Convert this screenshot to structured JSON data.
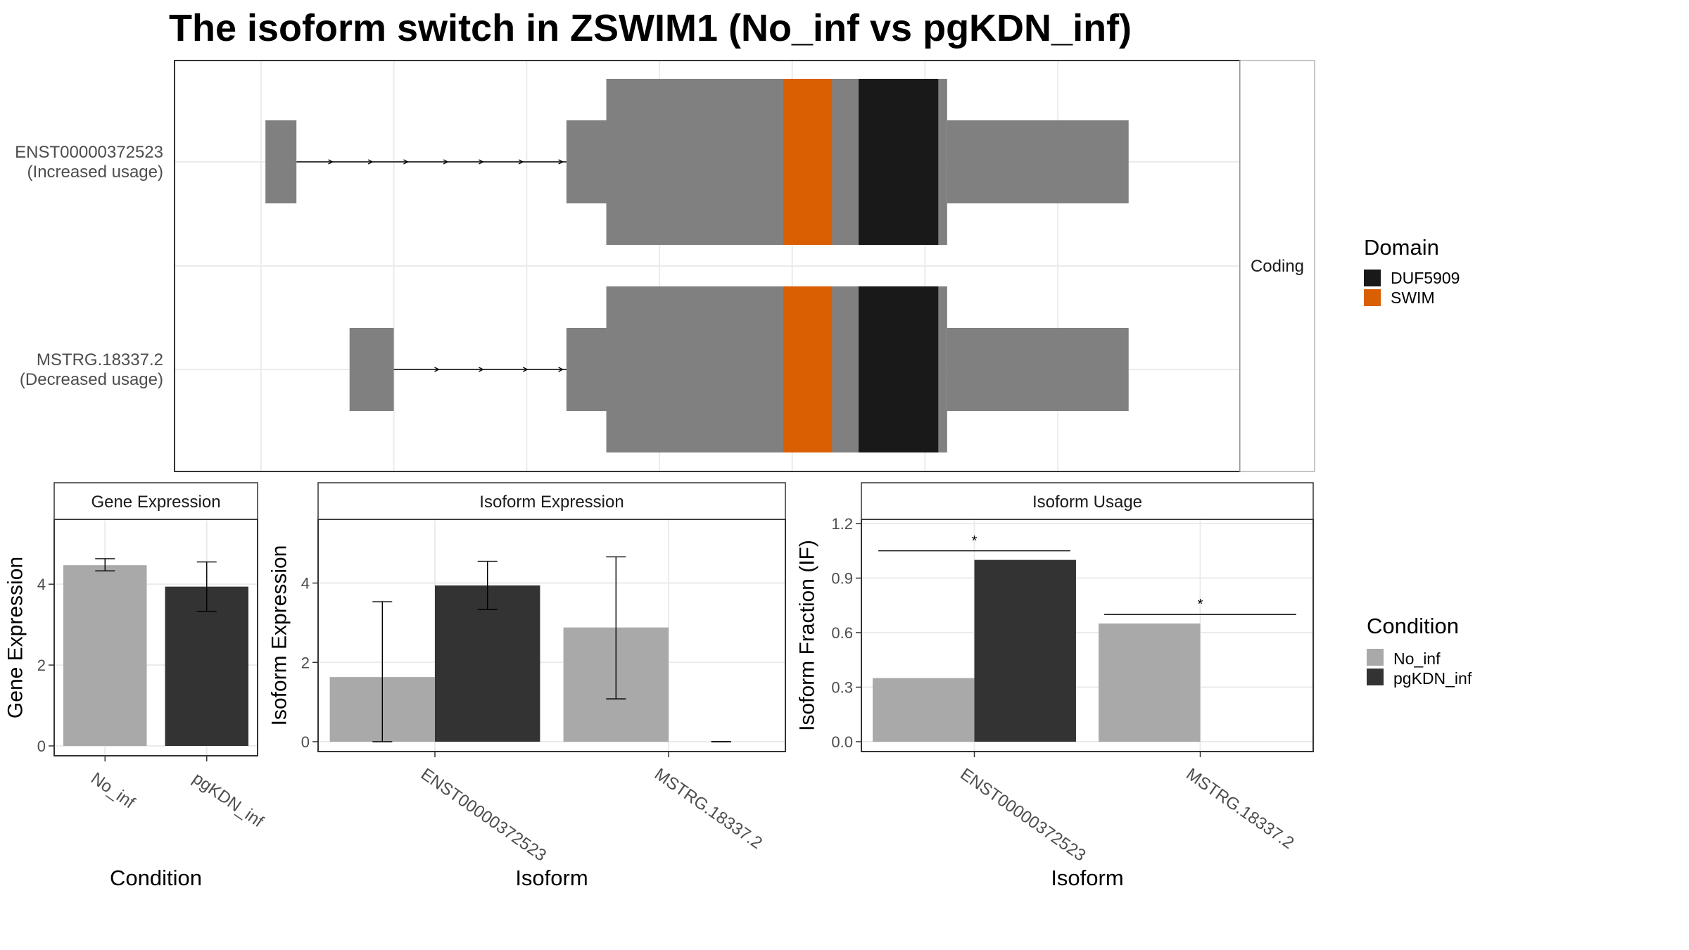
{
  "title": "The isoform switch in ZSWIM1 (No_inf vs pgKDN_inf)",
  "colors": {
    "exon": "#808080",
    "domain_DUF5909": "#191919",
    "domain_SWIM": "#D95F02",
    "no_inf": "#A9A9A9",
    "pgkdn_inf": "#333333",
    "grid": "#EBEBEB",
    "panel_border": "#333333"
  },
  "chart_data": [
    {
      "type": "gene_structure",
      "strip_label": "Coding",
      "xlim": [
        0,
        100
      ],
      "gridlines_x": [
        5,
        20,
        35,
        50,
        65,
        80,
        95
      ],
      "tracks": [
        {
          "id": "ENST00000372523",
          "label_line1": "ENST00000372523",
          "label_line2": "(Increased usage)",
          "exons": [
            {
              "start": 5.5,
              "end": 9,
              "kind": "utr"
            },
            {
              "start": 39.5,
              "end": 44,
              "kind": "utr"
            },
            {
              "start": 44,
              "end": 82.5,
              "kind": "cds"
            },
            {
              "start": 82.5,
              "end": 103,
              "kind": "utr"
            }
          ],
          "intron": [
            9,
            39.5
          ],
          "arrows": [
            13,
            17.5,
            21.5,
            26,
            30,
            34.5,
            39
          ],
          "domains": [
            {
              "name": "SWIM",
              "start": 64,
              "end": 69.5
            },
            {
              "name": "DUF5909",
              "start": 72.5,
              "end": 81.5
            }
          ]
        },
        {
          "id": "MSTRG.18337.2",
          "label_line1": "MSTRG.18337.2",
          "label_line2": "(Decreased usage)",
          "exons": [
            {
              "start": 15,
              "end": 20,
              "kind": "utr"
            },
            {
              "start": 39.5,
              "end": 44,
              "kind": "utr"
            },
            {
              "start": 44,
              "end": 82.5,
              "kind": "cds"
            },
            {
              "start": 82.5,
              "end": 103,
              "kind": "utr"
            }
          ],
          "intron": [
            20,
            39.5
          ],
          "arrows": [
            25,
            30,
            35,
            39
          ],
          "domains": [
            {
              "name": "SWIM",
              "start": 64,
              "end": 69.5
            },
            {
              "name": "DUF5909",
              "start": 72.5,
              "end": 81.5
            }
          ]
        }
      ],
      "legend": {
        "title": "Domain",
        "entries": [
          {
            "label": "DUF5909",
            "color": "#191919"
          },
          {
            "label": "SWIM",
            "color": "#D95F02"
          }
        ]
      }
    },
    {
      "type": "bar",
      "strip_label": "Gene Expression",
      "xlabel": "Condition",
      "ylabel": "Gene Expression",
      "ylim": [
        0,
        5.5
      ],
      "yticks": [
        0,
        2,
        4
      ],
      "categories": [
        "No_inf",
        "pgKDN_inf"
      ],
      "bars": [
        {
          "category": "No_inf",
          "condition": "No_inf",
          "value": 4.47,
          "err_low": 4.33,
          "err_high": 4.63
        },
        {
          "category": "pgKDN_inf",
          "condition": "pgKDN_inf",
          "value": 3.94,
          "err_low": 3.33,
          "err_high": 4.55
        }
      ]
    },
    {
      "type": "bar",
      "strip_label": "Isoform Expression",
      "xlabel": "Isoform",
      "ylabel": "Isoform Expression",
      "ylim": [
        0,
        5.5
      ],
      "yticks": [
        0,
        2,
        4
      ],
      "categories": [
        "ENST00000372523",
        "MSTRG.18337.2"
      ],
      "bars": [
        {
          "category": "ENST00000372523",
          "condition": "No_inf",
          "value": 1.63,
          "err_low": 0.0,
          "err_high": 3.53
        },
        {
          "category": "ENST00000372523",
          "condition": "pgKDN_inf",
          "value": 3.94,
          "err_low": 3.33,
          "err_high": 4.55
        },
        {
          "category": "MSTRG.18337.2",
          "condition": "No_inf",
          "value": 2.88,
          "err_low": 1.08,
          "err_high": 4.66
        },
        {
          "category": "MSTRG.18337.2",
          "condition": "pgKDN_inf",
          "value": 0.0,
          "err_low": 0.0,
          "err_high": 0.0
        }
      ]
    },
    {
      "type": "bar",
      "strip_label": "Isoform Usage",
      "xlabel": "Isoform",
      "ylabel": "Isoform Fraction (IF)",
      "ylim": [
        0,
        1.2
      ],
      "yticks": [
        "0.0",
        "0.3",
        "0.6",
        "0.9",
        "1.2"
      ],
      "categories": [
        "ENST00000372523",
        "MSTRG.18337.2"
      ],
      "bars": [
        {
          "category": "ENST00000372523",
          "condition": "No_inf",
          "value": 0.35
        },
        {
          "category": "ENST00000372523",
          "condition": "pgKDN_inf",
          "value": 1.0
        },
        {
          "category": "MSTRG.18337.2",
          "condition": "No_inf",
          "value": 0.65
        },
        {
          "category": "MSTRG.18337.2",
          "condition": "pgKDN_inf",
          "value": 0.0
        }
      ],
      "significance": [
        {
          "category": "ENST00000372523",
          "label": "*",
          "y": 1.05
        },
        {
          "category": "MSTRG.18337.2",
          "label": "*",
          "y": 0.7
        }
      ]
    }
  ],
  "condition_legend": {
    "title": "Condition",
    "entries": [
      {
        "label": "No_inf",
        "color": "#A9A9A9"
      },
      {
        "label": "pgKDN_inf",
        "color": "#333333"
      }
    ]
  }
}
